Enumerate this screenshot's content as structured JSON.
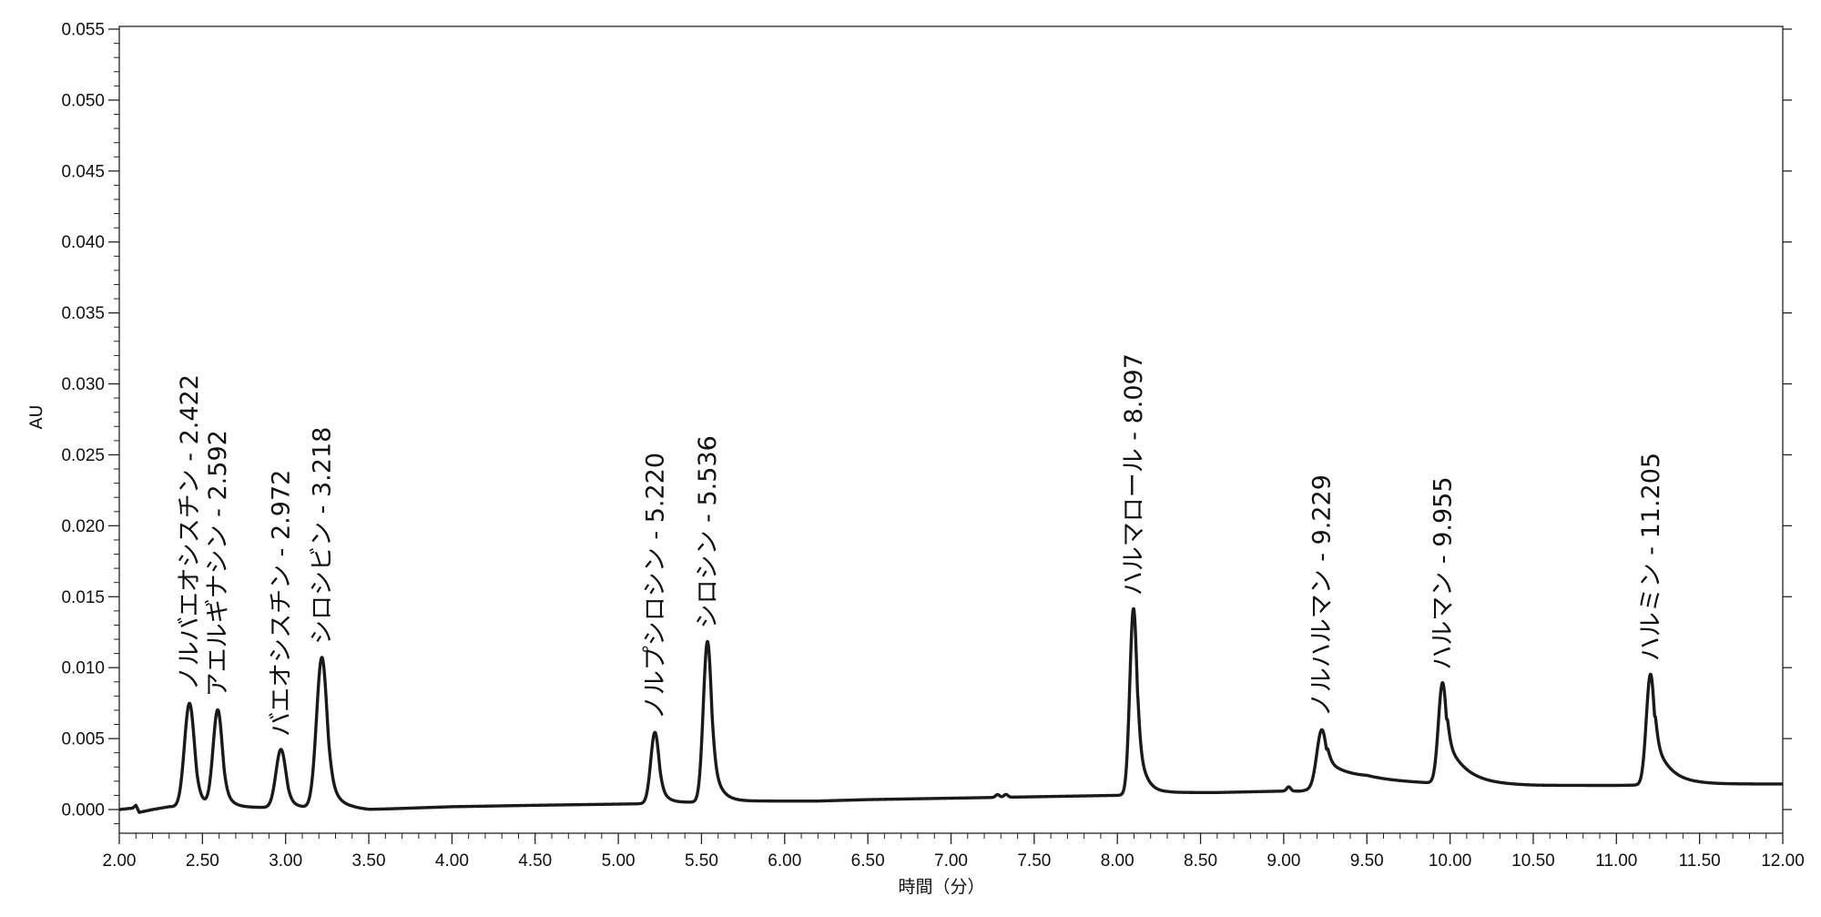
{
  "chart_data": {
    "type": "line",
    "xlabel": "時間（分）",
    "ylabel": "AU",
    "xlim": [
      2.0,
      12.0
    ],
    "ylim": [
      -0.001,
      0.055
    ],
    "x_ticks": [
      "2.00",
      "2.50",
      "3.00",
      "3.50",
      "4.00",
      "4.50",
      "5.00",
      "5.50",
      "6.00",
      "6.50",
      "7.00",
      "7.50",
      "8.00",
      "8.50",
      "9.00",
      "9.50",
      "10.00",
      "10.50",
      "11.00",
      "11.50",
      "12.00"
    ],
    "y_ticks": [
      "0.000",
      "0.005",
      "0.010",
      "0.015",
      "0.020",
      "0.025",
      "0.030",
      "0.035",
      "0.040",
      "0.045",
      "0.050",
      "0.055"
    ],
    "grid": false,
    "line_color": "#1a1a1a",
    "baseline": [
      [
        2.0,
        0.0
      ],
      [
        2.08,
        0.0001
      ],
      [
        2.1,
        0.0003
      ],
      [
        2.12,
        -0.0002
      ],
      [
        2.2,
        0.0
      ],
      [
        2.3,
        0.0002
      ],
      [
        3.4,
        0.0001
      ],
      [
        3.5,
        0.0
      ],
      [
        4.0,
        0.0002
      ],
      [
        4.5,
        0.0003
      ],
      [
        5.1,
        0.0004
      ],
      [
        5.7,
        0.0006
      ],
      [
        6.2,
        0.0006
      ],
      [
        6.5,
        0.0007
      ],
      [
        7.0,
        0.0008
      ],
      [
        7.5,
        0.0009
      ],
      [
        8.0,
        0.001
      ],
      [
        8.3,
        0.0012
      ],
      [
        8.6,
        0.0012
      ],
      [
        9.0,
        0.0013
      ],
      [
        9.1,
        0.0013
      ],
      [
        9.5,
        0.002
      ],
      [
        10.0,
        0.0018
      ],
      [
        10.5,
        0.0017
      ],
      [
        11.0,
        0.0017
      ],
      [
        11.5,
        0.0018
      ],
      [
        12.0,
        0.0018
      ]
    ],
    "peaks": [
      {
        "rt": 2.422,
        "label": "ノルバエオシスチン - 2.422",
        "height": 0.0073,
        "width_l": 0.03,
        "width_r": 0.04
      },
      {
        "rt": 2.592,
        "label": "アエルギナシン - 2.592",
        "height": 0.0068,
        "width_l": 0.028,
        "width_r": 0.04
      },
      {
        "rt": 2.972,
        "label": "バエオシスチン - 2.972",
        "height": 0.0041,
        "width_l": 0.03,
        "width_r": 0.04
      },
      {
        "rt": 3.218,
        "label": "シロシビン - 3.218",
        "height": 0.0106,
        "width_l": 0.032,
        "width_r": 0.05
      },
      {
        "rt": 5.22,
        "label": "ノルプシロシン - 5.220",
        "height": 0.005,
        "width_l": 0.025,
        "width_r": 0.04
      },
      {
        "rt": 5.536,
        "label": "シロシン - 5.536",
        "height": 0.0113,
        "width_l": 0.025,
        "width_r": 0.045
      },
      {
        "rt": 8.097,
        "label": "ハルマロール - 8.097",
        "height": 0.0131,
        "width_l": 0.022,
        "width_r": 0.045
      },
      {
        "rt": 9.229,
        "label": "ノルハルマン - 9.229",
        "height": 0.0041,
        "width_l": 0.03,
        "width_r": 0.16
      },
      {
        "rt": 9.955,
        "label": "ハルマン - 9.955",
        "height": 0.0071,
        "width_l": 0.025,
        "width_r": 0.11
      },
      {
        "rt": 11.205,
        "label": "ハルミン - 11.205",
        "height": 0.0078,
        "width_l": 0.025,
        "width_r": 0.09
      }
    ],
    "minor_bumps": [
      {
        "rt": 7.28,
        "height": 0.0002
      },
      {
        "rt": 7.33,
        "height": 0.0002
      },
      {
        "rt": 9.03,
        "height": 0.0003
      }
    ]
  }
}
